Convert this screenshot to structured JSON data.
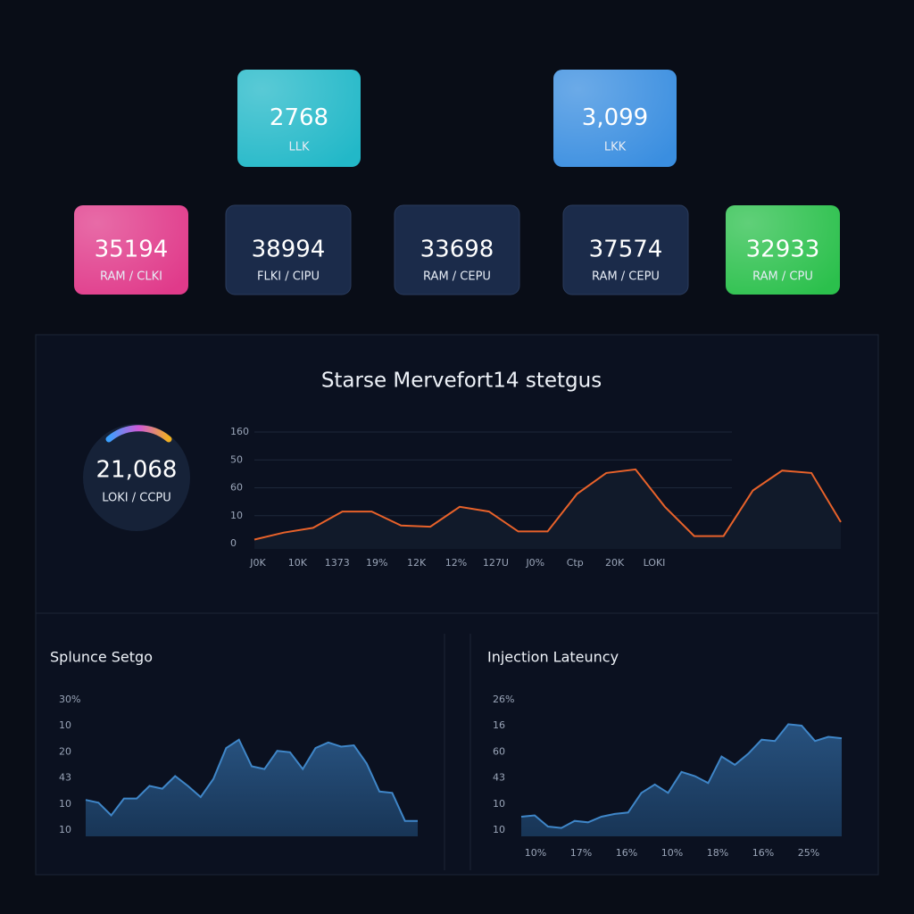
{
  "cards": [
    {
      "value": "2768",
      "label": "LLK",
      "color": "#22b8c8"
    },
    {
      "value": "3,099",
      "label": "LKK",
      "color": "#3a8ee0"
    },
    {
      "value": "35194",
      "label": "RAM / CLKI",
      "color": "#e03a8a"
    },
    {
      "value": "38994",
      "label": "FLKI / CIPU",
      "color": "#1b2b4a"
    },
    {
      "value": "33698",
      "label": "RAM / CEPU",
      "color": "#1b2b4a"
    },
    {
      "value": "37574",
      "label": "RAM / CEPU",
      "color": "#1b2b4a"
    },
    {
      "value": "32933",
      "label": "RAM / CPU",
      "color": "#2bc04c"
    }
  ],
  "main": {
    "title": "Starse Mervefort14 stetgus",
    "gauge": {
      "value": "21,068",
      "label": "LOKI / CCPU"
    },
    "chart": {
      "type": "line",
      "color": "#e8622a",
      "ylim": [
        0,
        100
      ],
      "y_labels": [
        "160",
        "50",
        "60",
        "10",
        "0"
      ],
      "x_labels": [
        "J0K",
        "10K",
        "1373",
        "19%",
        "12K",
        "12%",
        "127U",
        "J0%",
        "Ctp",
        "20K",
        "LOKI"
      ],
      "values": [
        8,
        14,
        18,
        32,
        32,
        20,
        19,
        36,
        32,
        15,
        15,
        47,
        65,
        68,
        36,
        11,
        11,
        50,
        67,
        65,
        23
      ]
    }
  },
  "panels": [
    {
      "title": "Splunce Setgo",
      "chart": {
        "type": "area",
        "color": "#3f86c8",
        "ylim": [
          0,
          100
        ],
        "y_labels": [
          "30%",
          "10",
          "20",
          "43",
          "10",
          "10"
        ],
        "values": [
          26,
          24,
          15,
          27,
          27,
          36,
          34,
          43,
          36,
          28,
          41,
          63,
          69,
          50,
          48,
          61,
          60,
          48,
          63,
          67,
          64,
          65,
          52,
          32,
          31,
          11,
          11
        ]
      }
    },
    {
      "title": "Injection Lateuncy",
      "chart": {
        "type": "area",
        "color": "#3f86c8",
        "ylim": [
          0,
          100
        ],
        "y_labels": [
          "26%",
          "16",
          "60",
          "43",
          "10",
          "10"
        ],
        "x_labels": [
          "10%",
          "17%",
          "16%",
          "10%",
          "18%",
          "16%",
          "25%"
        ],
        "values": [
          14,
          15,
          7,
          6,
          11,
          10,
          14,
          16,
          17,
          31,
          37,
          31,
          46,
          43,
          38,
          57,
          51,
          59,
          69,
          68,
          80,
          79,
          68,
          71,
          70
        ]
      }
    }
  ]
}
